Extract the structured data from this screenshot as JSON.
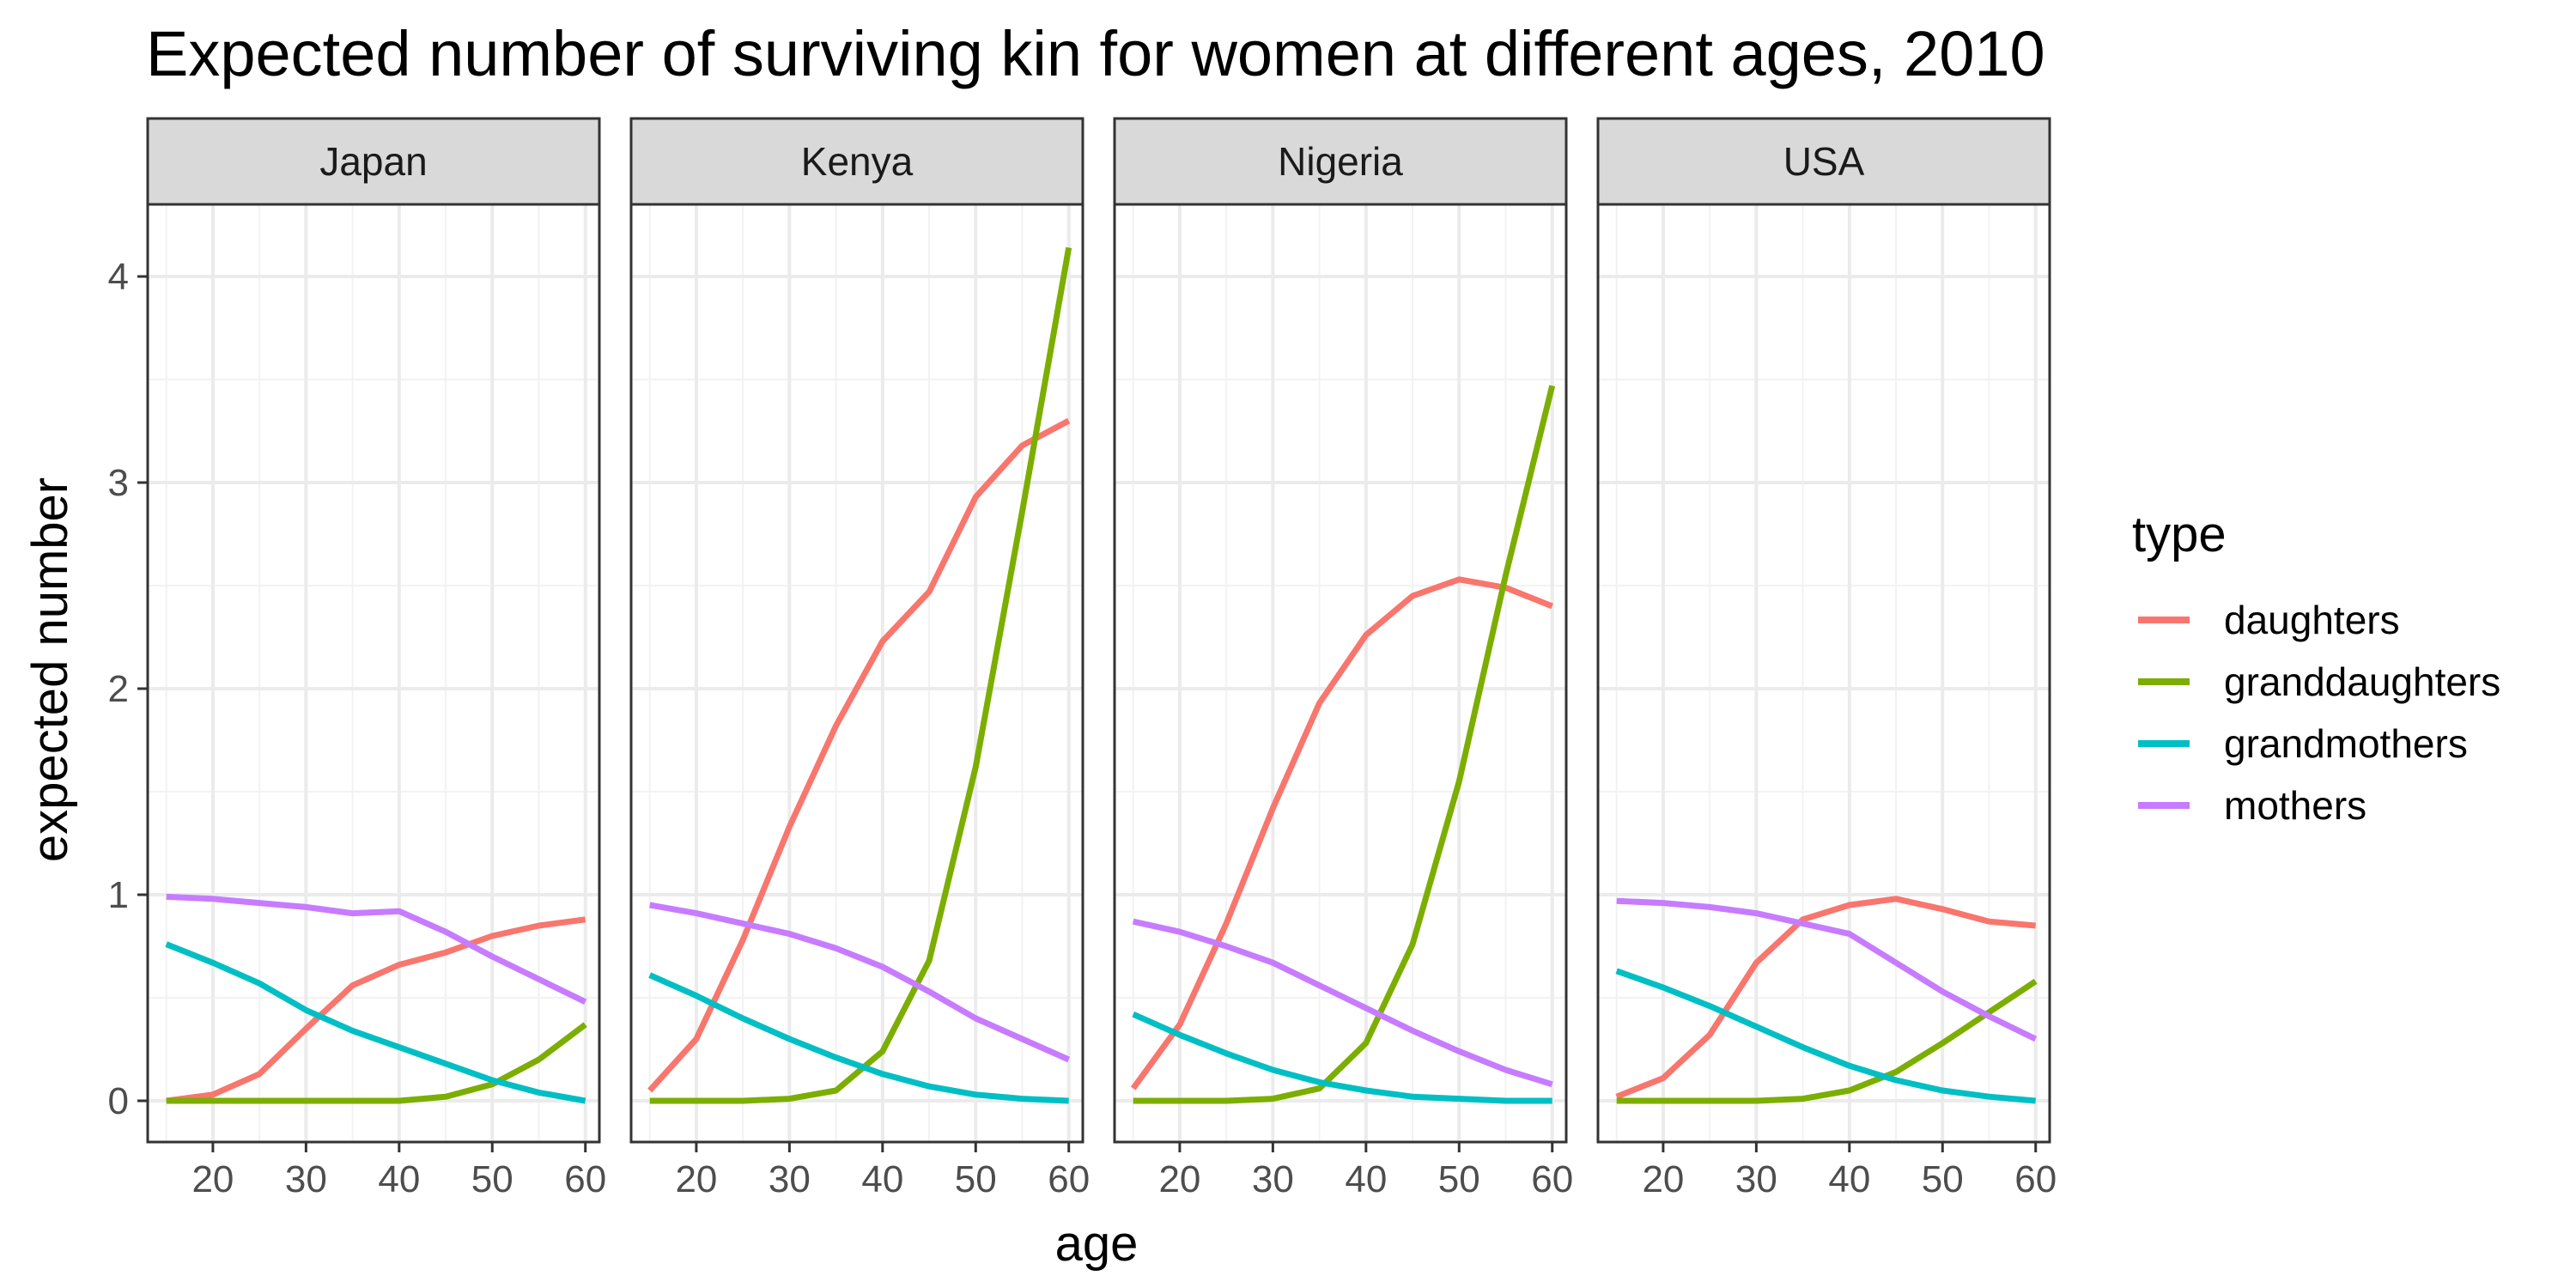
{
  "chart_data": {
    "type": "line",
    "title": "Expected number of surviving kin for women at different ages, 2010",
    "xlabel": "age",
    "ylabel": "expected number",
    "x": [
      15,
      20,
      25,
      30,
      35,
      40,
      45,
      50,
      55,
      60
    ],
    "xlim": [
      13,
      61.5
    ],
    "ylim": [
      -0.2,
      4.35
    ],
    "xticks": [
      20,
      30,
      40,
      50,
      60
    ],
    "yticks": [
      0,
      1,
      2,
      3,
      4
    ],
    "grid": true,
    "legend": {
      "title": "type",
      "position": "right",
      "entries": [
        {
          "name": "daughters",
          "color": "#F8766D"
        },
        {
          "name": "granddaughters",
          "color": "#7CAE00"
        },
        {
          "name": "grandmothers",
          "color": "#00BFC4"
        },
        {
          "name": "mothers",
          "color": "#C77CFF"
        }
      ]
    },
    "panels": [
      {
        "name": "Japan",
        "series": [
          {
            "name": "daughters",
            "values": [
              0.0,
              0.03,
              0.13,
              0.35,
              0.56,
              0.66,
              0.72,
              0.8,
              0.85,
              0.88
            ]
          },
          {
            "name": "granddaughters",
            "values": [
              0.0,
              0.0,
              0.0,
              0.0,
              0.0,
              0.0,
              0.02,
              0.08,
              0.2,
              0.37
            ]
          },
          {
            "name": "grandmothers",
            "values": [
              0.76,
              0.67,
              0.57,
              0.44,
              0.34,
              0.26,
              0.18,
              0.1,
              0.04,
              0.0
            ]
          },
          {
            "name": "mothers",
            "values": [
              0.99,
              0.98,
              0.96,
              0.94,
              0.91,
              0.92,
              0.82,
              0.7,
              0.59,
              0.48
            ]
          }
        ]
      },
      {
        "name": "Kenya",
        "series": [
          {
            "name": "daughters",
            "values": [
              0.05,
              0.3,
              0.78,
              1.33,
              1.82,
              2.23,
              2.47,
              2.93,
              3.18,
              3.3
            ]
          },
          {
            "name": "granddaughters",
            "values": [
              0.0,
              0.0,
              0.0,
              0.01,
              0.05,
              0.24,
              0.68,
              1.62,
              2.86,
              4.14
            ]
          },
          {
            "name": "grandmothers",
            "values": [
              0.61,
              0.51,
              0.4,
              0.3,
              0.21,
              0.13,
              0.07,
              0.03,
              0.01,
              0.0
            ]
          },
          {
            "name": "mothers",
            "values": [
              0.95,
              0.91,
              0.86,
              0.81,
              0.74,
              0.65,
              0.53,
              0.4,
              0.3,
              0.2
            ]
          }
        ]
      },
      {
        "name": "Nigeria",
        "series": [
          {
            "name": "daughters",
            "values": [
              0.06,
              0.37,
              0.86,
              1.42,
              1.93,
              2.26,
              2.45,
              2.53,
              2.49,
              2.4
            ]
          },
          {
            "name": "granddaughters",
            "values": [
              0.0,
              0.0,
              0.0,
              0.01,
              0.06,
              0.28,
              0.76,
              1.55,
              2.55,
              3.47
            ]
          },
          {
            "name": "grandmothers",
            "values": [
              0.42,
              0.32,
              0.23,
              0.15,
              0.09,
              0.05,
              0.02,
              0.01,
              0.0,
              0.0
            ]
          },
          {
            "name": "mothers",
            "values": [
              0.87,
              0.82,
              0.75,
              0.67,
              0.56,
              0.45,
              0.34,
              0.24,
              0.15,
              0.08
            ]
          }
        ]
      },
      {
        "name": "USA",
        "series": [
          {
            "name": "daughters",
            "values": [
              0.02,
              0.11,
              0.32,
              0.67,
              0.88,
              0.95,
              0.98,
              0.93,
              0.87,
              0.85
            ]
          },
          {
            "name": "granddaughters",
            "values": [
              0.0,
              0.0,
              0.0,
              0.0,
              0.01,
              0.05,
              0.14,
              0.28,
              0.43,
              0.58
            ]
          },
          {
            "name": "grandmothers",
            "values": [
              0.63,
              0.55,
              0.46,
              0.36,
              0.26,
              0.17,
              0.1,
              0.05,
              0.02,
              0.0
            ]
          },
          {
            "name": "mothers",
            "values": [
              0.97,
              0.96,
              0.94,
              0.91,
              0.86,
              0.81,
              0.67,
              0.53,
              0.41,
              0.3
            ]
          }
        ]
      }
    ]
  }
}
